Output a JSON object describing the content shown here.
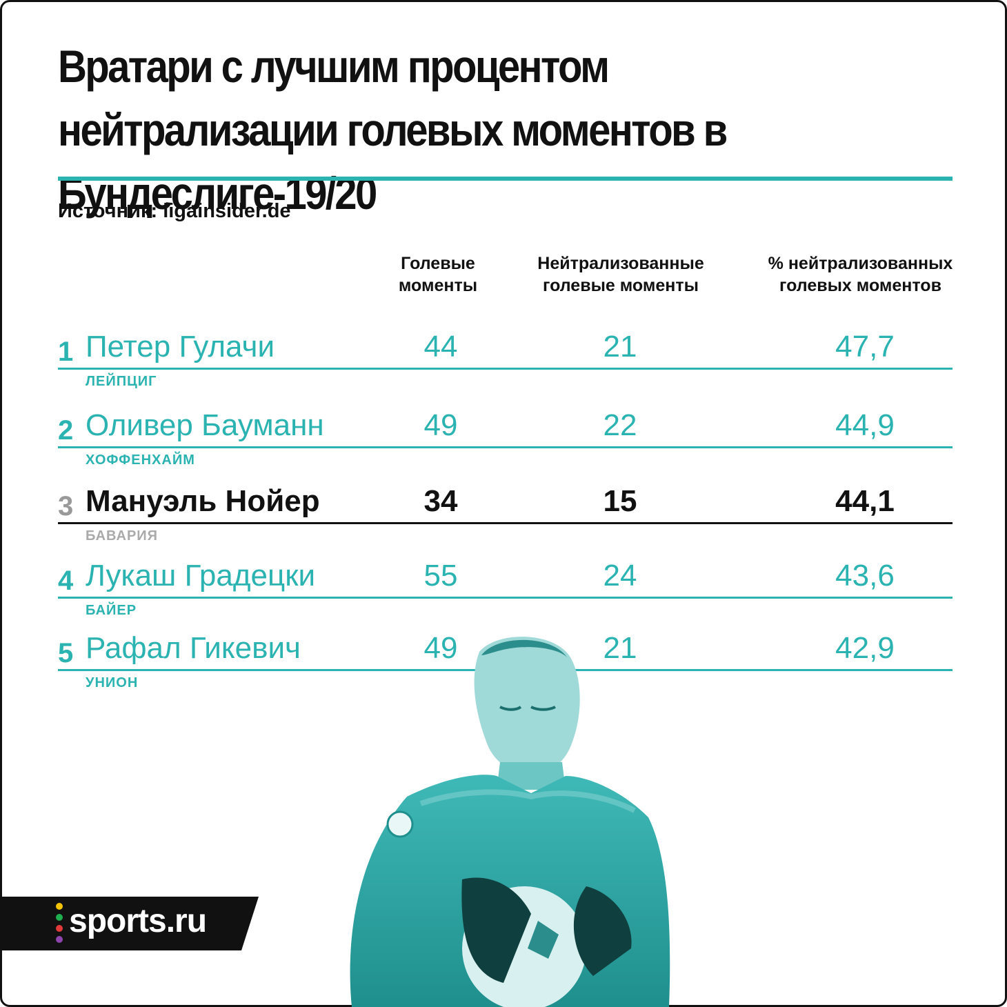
{
  "title": "Вратари с лучшим процентом нейтрализации голевых моментов в Бундеслиге-19/20",
  "source": "Источник: ligainsider.de",
  "colors": {
    "accent": "#2ab3b1",
    "highlight": "#111111",
    "brand_dots": [
      "#f5c400",
      "#1faf4f",
      "#e23a3a",
      "#2d7fd3",
      "#8e44ad"
    ]
  },
  "logo_text": "sports.ru",
  "chart_data": {
    "type": "table",
    "title": "Вратари с лучшим процентом нейтрализации голевых моментов в Бундеслиге-19/20",
    "columns": [
      "Голевые\nмоменты",
      "Нейтрализованные\nголевые моменты",
      "% нейтрализованных\nголевых моментов"
    ],
    "rows": [
      {
        "rank": "1",
        "name": "Петер Гулачи",
        "team": "ЛЕЙПЦИГ",
        "chances": "44",
        "neutralized": "21",
        "pct": "47,7",
        "highlight": false
      },
      {
        "rank": "2",
        "name": "Оливер Бауманн",
        "team": "ХОФФЕНХАЙМ",
        "chances": "49",
        "neutralized": "22",
        "pct": "44,9",
        "highlight": false
      },
      {
        "rank": "3",
        "name": "Мануэль Нойер",
        "team": "БАВАРИЯ",
        "chances": "34",
        "neutralized": "15",
        "pct": "44,1",
        "highlight": true
      },
      {
        "rank": "4",
        "name": "Лукаш Градецки",
        "team": "БАЙЕР",
        "chances": "55",
        "neutralized": "24",
        "pct": "43,6",
        "highlight": false
      },
      {
        "rank": "5",
        "name": "Рафал Гикевич",
        "team": "УНИОН",
        "chances": "49",
        "neutralized": "21",
        "pct": "42,9",
        "highlight": false
      }
    ]
  }
}
